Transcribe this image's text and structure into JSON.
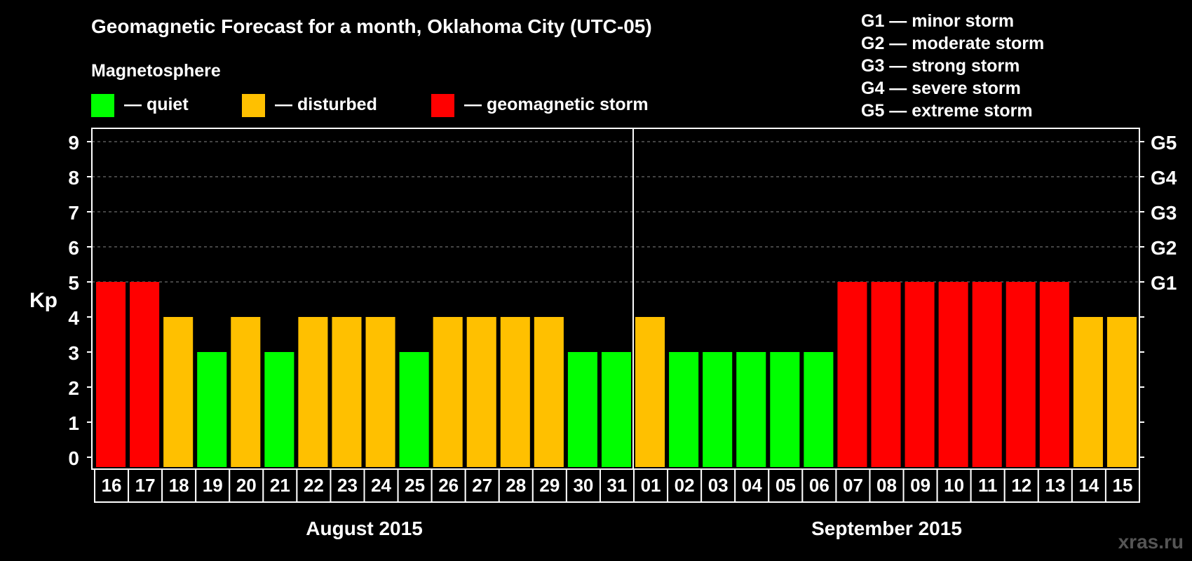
{
  "chart_data": {
    "type": "bar",
    "title": "Geomagnetic Forecast for a month, Oklahoma City (UTC-05)",
    "legend_title": "Magnetosphere",
    "legend": [
      {
        "label": "— quiet",
        "color": "#00ff00"
      },
      {
        "label": "— disturbed",
        "color": "#ffc000"
      },
      {
        "label": "— geomagnetic storm",
        "color": "#ff0000"
      }
    ],
    "storm_levels": [
      {
        "label": "G1",
        "desc": "G1 — minor storm",
        "kp": 5
      },
      {
        "label": "G2",
        "desc": "G2 — moderate storm",
        "kp": 6
      },
      {
        "label": "G3",
        "desc": "G3 — strong storm",
        "kp": 7
      },
      {
        "label": "G4",
        "desc": "G4 — severe storm",
        "kp": 8
      },
      {
        "label": "G5",
        "desc": "G5 — extreme storm",
        "kp": 9
      }
    ],
    "ylabel": "Kp",
    "ylim": [
      0,
      9
    ],
    "yticks": [
      "0",
      "1",
      "2",
      "3",
      "4",
      "5",
      "6",
      "7",
      "8",
      "9"
    ],
    "categories": [
      "16",
      "17",
      "18",
      "19",
      "20",
      "21",
      "22",
      "23",
      "24",
      "25",
      "26",
      "27",
      "28",
      "29",
      "30",
      "31",
      "01",
      "02",
      "03",
      "04",
      "05",
      "06",
      "07",
      "08",
      "09",
      "10",
      "11",
      "12",
      "13",
      "14",
      "15"
    ],
    "values": [
      5,
      5,
      4,
      3,
      4,
      3,
      4,
      4,
      4,
      3,
      4,
      4,
      4,
      4,
      3,
      3,
      4,
      3,
      3,
      3,
      3,
      3,
      5,
      5,
      5,
      5,
      5,
      5,
      5,
      4,
      4
    ],
    "months": [
      {
        "label": "August 2015",
        "first_index": 0,
        "last_index": 15
      },
      {
        "label": "September 2015",
        "first_index": 16,
        "last_index": 30
      }
    ],
    "colors": {
      "quiet": "#00ff00",
      "disturbed": "#ffc000",
      "storm": "#ff0000",
      "grid": "#888888",
      "axis": "#ffffff",
      "watermark": "#555555"
    }
  },
  "watermark": "xras.ru"
}
